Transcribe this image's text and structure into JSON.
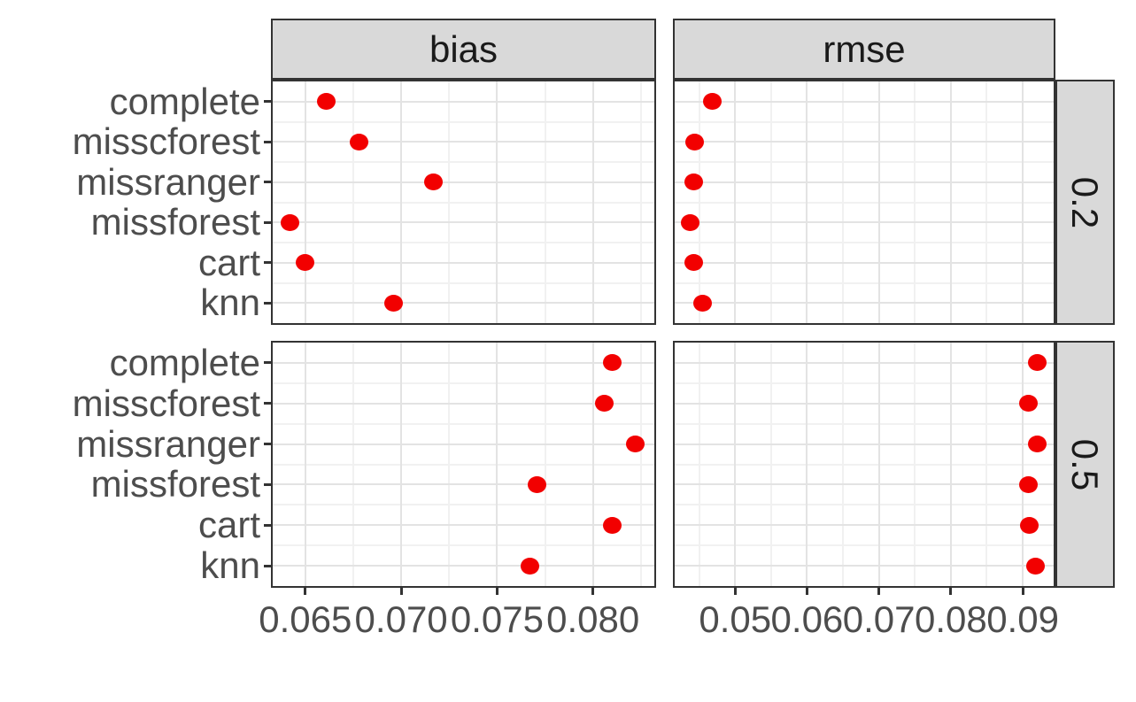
{
  "chart_data": {
    "type": "scatter",
    "title": "",
    "description": "Faceted dot plot of imputation-method performance; columns are metrics, rows are missingness proportions",
    "categories": [
      "complete",
      "misscforest",
      "missranger",
      "missforest",
      "cart",
      "knn"
    ],
    "col_facets": [
      "bias",
      "rmse"
    ],
    "row_facets": [
      "0.2",
      "0.5"
    ],
    "panels": [
      {
        "col": "bias",
        "row": "0.2",
        "values": [
          0.0661,
          0.0678,
          0.0717,
          0.0642,
          0.065,
          0.0696
        ]
      },
      {
        "col": "bias",
        "row": "0.5",
        "values": [
          0.081,
          0.0806,
          0.0822,
          0.0771,
          0.081,
          0.0767
        ]
      },
      {
        "col": "rmse",
        "row": "0.2",
        "values": [
          0.0468,
          0.0444,
          0.0442,
          0.0437,
          0.0443,
          0.0455
        ]
      },
      {
        "col": "rmse",
        "row": "0.5",
        "values": [
          0.092,
          0.0908,
          0.092,
          0.0908,
          0.0909,
          0.0918
        ]
      }
    ],
    "x_axes": [
      {
        "col": "bias",
        "tick_labels": [
          "0.065",
          "0.070",
          "0.075",
          "0.080"
        ],
        "tick_values": [
          0.065,
          0.07,
          0.075,
          0.08
        ],
        "minor_values": [
          0.0675,
          0.0725,
          0.0775,
          0.0825
        ],
        "range": [
          0.0633,
          0.0832
        ]
      },
      {
        "col": "rmse",
        "tick_labels": [
          "0.05",
          "0.06",
          "0.07",
          "0.08",
          "0.09"
        ],
        "tick_values": [
          0.05,
          0.06,
          0.07,
          0.08,
          0.09
        ],
        "minor_values": [
          0.045,
          0.055,
          0.065,
          0.075,
          0.085
        ],
        "range": [
          0.0416,
          0.0943
        ]
      }
    ],
    "grid": "on",
    "legend": "none",
    "colors": {
      "point": "#f20000",
      "strip_background": "#d9d9d9",
      "panel_border": "#333333",
      "axis_text": "#4d4d4d",
      "grid_major": "#e3e3e3",
      "grid_minor": "#f1f1f1"
    }
  }
}
